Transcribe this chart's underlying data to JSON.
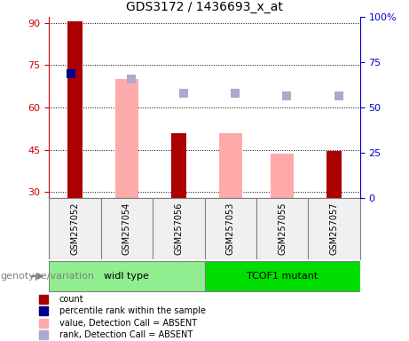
{
  "title": "GDS3172 / 1436693_x_at",
  "samples": [
    "GSM257052",
    "GSM257054",
    "GSM257056",
    "GSM257053",
    "GSM257055",
    "GSM257057"
  ],
  "groups": [
    {
      "name": "widl type",
      "samples": [
        "GSM257052",
        "GSM257054",
        "GSM257056"
      ],
      "color": "#90ee90"
    },
    {
      "name": "TCOF1 mutant",
      "samples": [
        "GSM257053",
        "GSM257055",
        "GSM257057"
      ],
      "color": "#00cc00"
    }
  ],
  "count_bars": {
    "GSM257052": 90.5,
    "GSM257056": 51.0,
    "GSM257057": 44.5
  },
  "absent_value_bars": {
    "GSM257054": 70.0,
    "GSM257053": 51.0,
    "GSM257055": 43.5
  },
  "percentile_rank_present": {
    "GSM257052": 72.0
  },
  "percentile_rank_absent": {
    "GSM257054": 70.0,
    "GSM257056": 65.0,
    "GSM257053": 65.0,
    "GSM257055": 64.0,
    "GSM257057": 64.0
  },
  "ylim_left": [
    28,
    92
  ],
  "yticks_left": [
    30,
    45,
    60,
    75,
    90
  ],
  "ylim_right": [
    0,
    100
  ],
  "yticks_right": [
    0,
    25,
    50,
    75,
    100
  ],
  "bar_bottom": 28,
  "count_color": "#aa0000",
  "absent_value_color": "#ffaaaa",
  "percentile_rank_present_color": "#00008b",
  "percentile_rank_absent_color": "#aaaacc",
  "left_axis_color": "#cc0000",
  "right_axis_color": "#0000cc",
  "background_color": "#f0f0f0",
  "legend_items": [
    {
      "label": "count",
      "color": "#aa0000",
      "type": "square"
    },
    {
      "label": "percentile rank within the sample",
      "color": "#00008b",
      "type": "square"
    },
    {
      "label": "value, Detection Call = ABSENT",
      "color": "#ffaaaa",
      "type": "square"
    },
    {
      "label": "rank, Detection Call = ABSENT",
      "color": "#aaaacc",
      "type": "square"
    }
  ],
  "genotype_label": "genotype/variation",
  "xlabel": "",
  "bar_width": 0.35,
  "marker_size": 8
}
